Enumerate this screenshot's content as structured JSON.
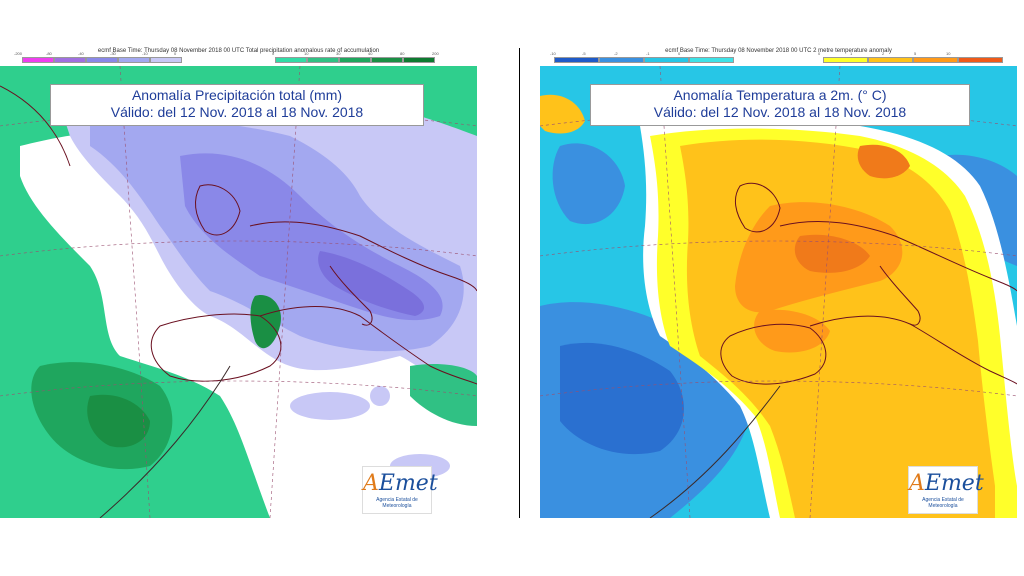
{
  "left": {
    "header_text": "ecmf  Base Time: Thursday 08 November 2018 00 UTC Total precipitation anomalous rate of accumulation",
    "scale_neg_ticks": [
      "-200",
      "-80",
      "-40",
      "-30",
      "-10",
      "0"
    ],
    "scale_pos_ticks": [
      "0",
      "10",
      "30",
      "40",
      "80",
      "200"
    ],
    "scale_neg_colors": [
      "#ee3fee",
      "#a070e0",
      "#8a88e8",
      "#a3a8f0",
      "#c8c8f6"
    ],
    "scale_pos_colors": [
      "#32dca6",
      "#30c184",
      "#1fa65e",
      "#1a8f44",
      "#0d7a30"
    ],
    "title_line1": "Anomalía Precipitación total (mm)",
    "title_line2": "Válido: del 12 Nov. 2018 al 18 Nov. 2018",
    "logo_brand_a": "A",
    "logo_brand_rest": "Emet",
    "logo_subtitle": "Agencia Estatal de Meteorología"
  },
  "right": {
    "header_text": "ecmf  Base Time: Thursday 08 November 2018 00 UTC 2 metre temperature anomaly",
    "scale_neg_ticks": [
      "-10",
      "-5",
      "-2",
      "-1",
      "0"
    ],
    "scale_pos_ticks": [
      "0",
      "1",
      "2",
      "5",
      "10"
    ],
    "scale_neg_colors": [
      "#1e5ac8",
      "#3a90e0",
      "#27c6e6",
      "#3ee2e6"
    ],
    "scale_pos_colors": [
      "#ffff2a",
      "#ffc21a",
      "#ff9a1a",
      "#ee5a1a"
    ],
    "title_line1": "Anomalía Temperatura a 2m. (° C)",
    "title_line2": "Válido: del 12 Nov. 2018 al 18 Nov. 2018",
    "logo_brand_a": "A",
    "logo_brand_rest": "Emet",
    "logo_subtitle": "Agencia Estatal de Meteorología"
  }
}
